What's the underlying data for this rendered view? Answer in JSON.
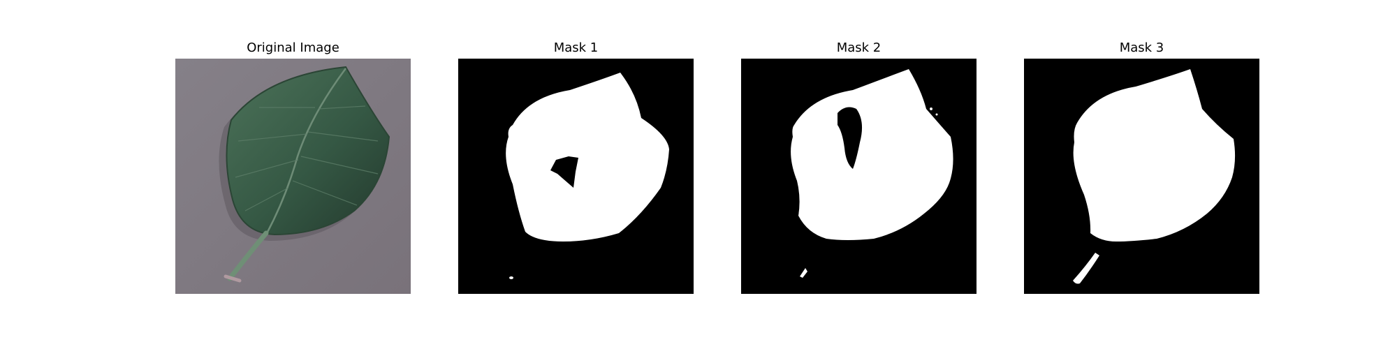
{
  "panels": [
    {
      "title": "Original Image",
      "kind": "photo"
    },
    {
      "title": "Mask 1",
      "kind": "mask"
    },
    {
      "title": "Mask 2",
      "kind": "mask"
    },
    {
      "title": "Mask 3",
      "kind": "mask"
    }
  ],
  "colors": {
    "background": "#ffffff",
    "photo_background": "#7f7880",
    "leaf_dark": "#2f4f3d",
    "leaf_light": "#4a6f57",
    "mask_background": "#000000",
    "mask_foreground": "#ffffff"
  }
}
